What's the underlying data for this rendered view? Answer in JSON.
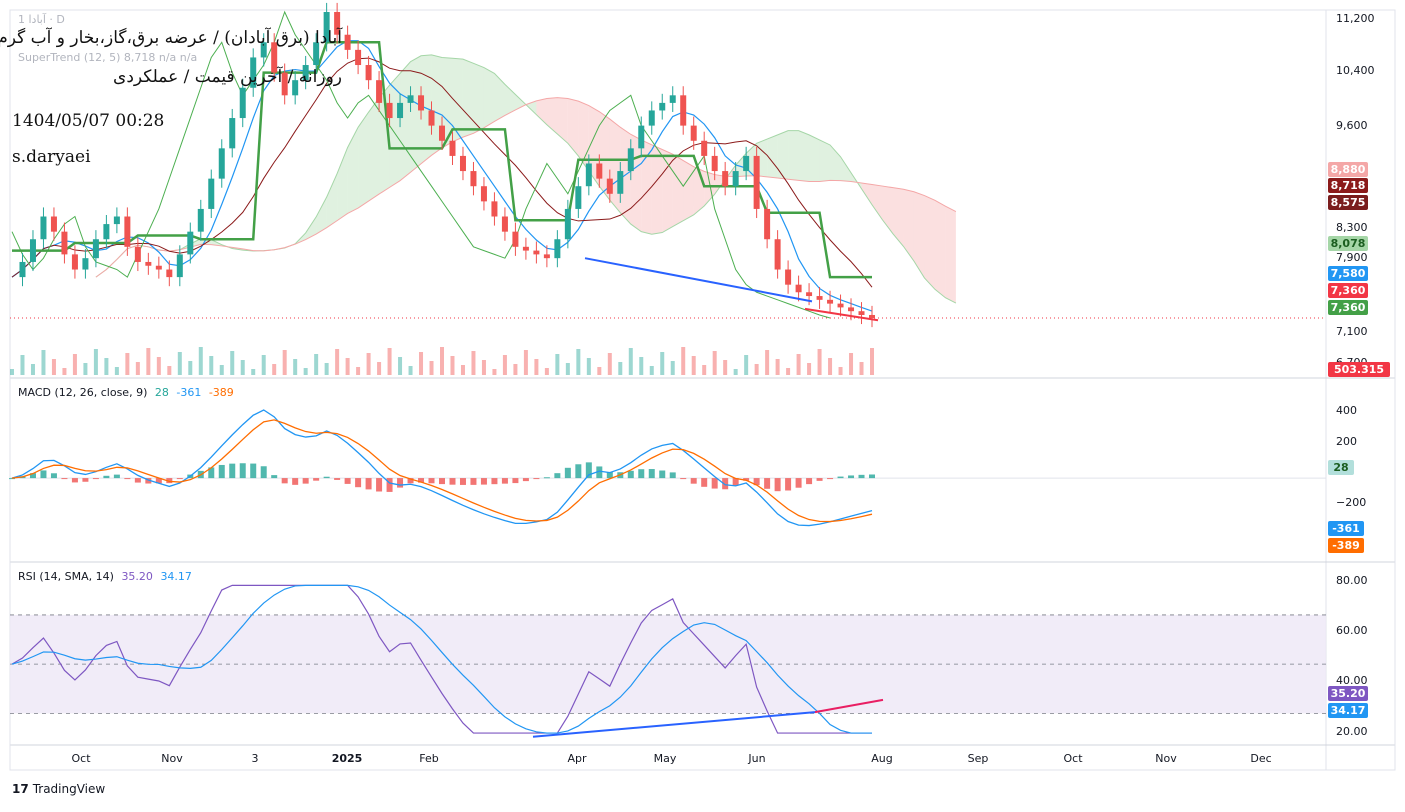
{
  "header": {
    "symbol_line": "1 آبادا · D",
    "title": "آبادا (برق آبادان) / عرضه برق،گاز،بخار و آب گرم",
    "subtitle": "روزانه / آخرین قیمت / عملکردی",
    "datetime": "1404/05/07 00:28",
    "author": "s.daryaei",
    "supertrend_label": "SuperTrend (12, 5)  8,718  n/a  n/a"
  },
  "price_axis": {
    "ticks": [
      "11,200",
      "10,400",
      "9,600",
      "8,300",
      "7,900",
      "7,100",
      "6,700"
    ],
    "tags": [
      {
        "value": "8,880",
        "color": "#f4a7a7",
        "text_color": "#ffffff"
      },
      {
        "value": "8,718",
        "color": "#8b1a1a",
        "text_color": "#ffffff"
      },
      {
        "value": "8,575",
        "color": "#7a1d1d",
        "text_color": "#ffffff"
      },
      {
        "value": "8,078",
        "color": "#a5d6a7",
        "text_color": "#1b5e20"
      },
      {
        "value": "7,580",
        "color": "#2196f3",
        "text_color": "#ffffff"
      },
      {
        "value": "7,360",
        "color": "#f23645",
        "text_color": "#ffffff"
      },
      {
        "value": "7,360",
        "color": "#43a047",
        "text_color": "#ffffff"
      },
      {
        "value": "503.315 K",
        "color": "#f23645",
        "text_color": "#ffffff"
      }
    ]
  },
  "macd": {
    "label": "MACD (12, 26, close, 9)",
    "hist_value": "28",
    "macd_value": "-361",
    "signal_value": "-389",
    "ticks": [
      "400",
      "200",
      "−200"
    ],
    "colors": {
      "macd": "#2196f3",
      "signal": "#ff6d00",
      "hist_up": "#26a69a",
      "hist_down": "#ef5350"
    }
  },
  "rsi": {
    "label": "RSI (14, SMA, 14)",
    "rsi_value": "35.20",
    "sma_value": "34.17",
    "ticks": [
      "80.00",
      "60.00",
      "40.00",
      "20.00"
    ],
    "colors": {
      "rsi": "#7e57c2",
      "sma": "#2196f3",
      "band": "#ede7f6"
    }
  },
  "x_axis": {
    "labels": [
      "Oct",
      "Nov",
      "3",
      "2025",
      "Feb",
      "Apr",
      "May",
      "Jun",
      "Aug",
      "Sep",
      "Oct",
      "Nov",
      "Dec"
    ]
  },
  "footer": {
    "brand": "TradingView",
    "logo_glyph": "17"
  },
  "chart_data": [
    {
      "type": "candlestick",
      "pane": "price",
      "ylim": [
        6700,
        11400
      ],
      "last_close": 7360,
      "overlays": [
        "Ichimoku cloud",
        "SuperTrend (12, 5)",
        "Bollinger mid line"
      ],
      "trendlines": [
        {
          "name": "price support (blue)",
          "from": 8150,
          "to": 7580
        },
        {
          "name": "price support (red)",
          "from": 7480,
          "to": 7330
        }
      ],
      "price_path": [
        7900,
        8100,
        8400,
        8700,
        8500,
        8200,
        8000,
        8150,
        8400,
        8600,
        8700,
        8300,
        8100,
        8050,
        8000,
        7900,
        8200,
        8500,
        8800,
        9200,
        9600,
        10000,
        10400,
        10800,
        11000,
        10600,
        10300,
        10500,
        10700,
        11000,
        11400,
        11100,
        10900,
        10700,
        10500,
        10200,
        10000,
        10200,
        10300,
        10100,
        9900,
        9700,
        9500,
        9300,
        9100,
        8900,
        8700,
        8500,
        8300,
        8250,
        8200,
        8150,
        8400,
        8800,
        9100,
        9400,
        9200,
        9000,
        9300,
        9600,
        9900,
        10100,
        10200,
        10300,
        9900,
        9700,
        9500,
        9300,
        9100,
        9300,
        9500,
        8800,
        8400,
        8000,
        7800,
        7700,
        7650,
        7600,
        7550,
        7500,
        7450,
        7400,
        7360
      ]
    },
    {
      "type": "bar",
      "pane": "volume",
      "last_value": "503.315 K"
    },
    {
      "type": "line",
      "pane": "macd",
      "ylim": [
        -500,
        520
      ],
      "series": [
        {
          "name": "MACD",
          "last": -361
        },
        {
          "name": "Signal",
          "last": -389
        },
        {
          "name": "Histogram",
          "last": 28
        }
      ]
    },
    {
      "type": "line",
      "pane": "rsi",
      "ylim": [
        20,
        85
      ],
      "band": [
        30,
        70
      ],
      "series": [
        {
          "name": "RSI",
          "last": 35.2
        },
        {
          "name": "RSI-based MA",
          "last": 34.17
        }
      ],
      "trendlines": [
        {
          "name": "RSI support (blue)",
          "from": 20.5,
          "to": 30.5
        },
        {
          "name": "RSI support (red)",
          "from": 30.5,
          "to": 35.5
        }
      ]
    }
  ]
}
